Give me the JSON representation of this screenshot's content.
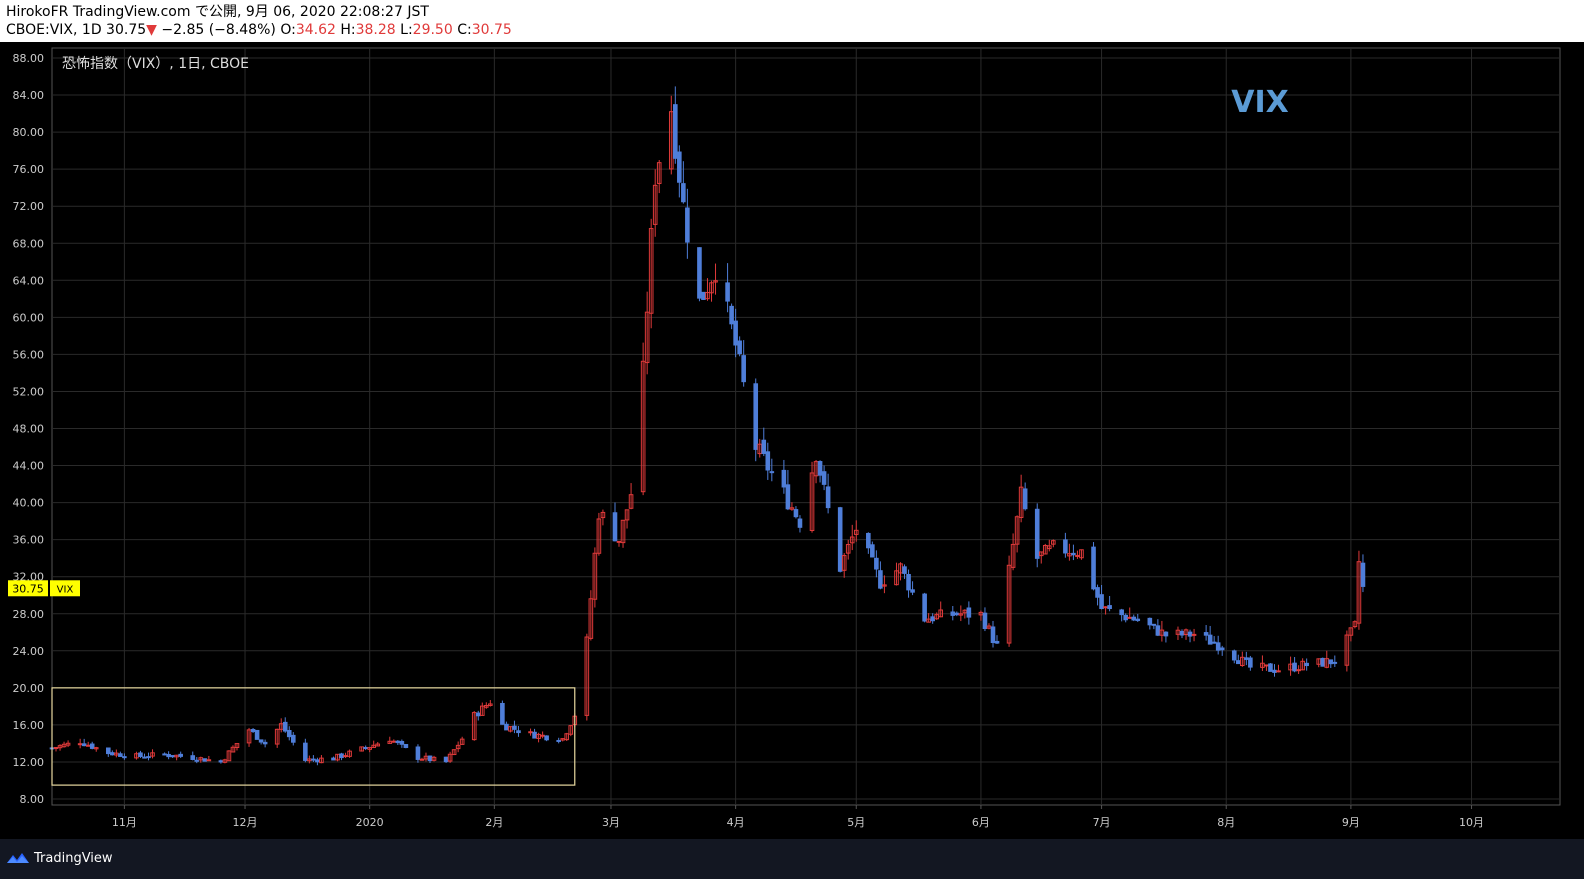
{
  "header": {
    "publish_line": "HirokoFR TradingView.com で公開, 9月 06, 2020 22:08:27 JST",
    "symbol_info": "CBOE:VIX, 1D 30.75",
    "down_arrow": "▼",
    "change": " −2.85 (−8.48%) ",
    "o_label": "O:",
    "o_value": "34.62",
    "h_label": " H:",
    "h_value": "38.28",
    "l_label": " L:",
    "l_value": "29.50",
    "c_label": " C:",
    "c_value": "30.75"
  },
  "footer": {
    "brand": "TradingView",
    "logo_icon": "tradingview-logo-icon"
  },
  "colors": {
    "up": "#e03a3a",
    "down": "#4f7ed9",
    "grid": "#2a2a2a",
    "axis": "#555",
    "watermark": "#5b9bd5",
    "highlight_box": "#e8d9a0",
    "price_tag": "#ffff00"
  },
  "chart_data": {
    "type": "candlestick",
    "title": "恐怖指数（VIX）, 1日, CBOE",
    "watermark": "VIX",
    "ylim": [
      8,
      88
    ],
    "y_ticks": [
      "8.00",
      "12.00",
      "16.00",
      "20.00",
      "24.00",
      "28.00",
      "32.00",
      "36.00",
      "40.00",
      "44.00",
      "48.00",
      "52.00",
      "56.00",
      "60.00",
      "64.00",
      "68.00",
      "72.00",
      "76.00",
      "80.00",
      "84.00",
      "88.00"
    ],
    "x_ticks": [
      {
        "label": "11月",
        "date": "2019-11-01"
      },
      {
        "label": "12月",
        "date": "2019-12-01"
      },
      {
        "label": "2020",
        "date": "2020-01-01"
      },
      {
        "label": "2月",
        "date": "2020-02-01"
      },
      {
        "label": "3月",
        "date": "2020-03-01"
      },
      {
        "label": "4月",
        "date": "2020-04-01"
      },
      {
        "label": "5月",
        "date": "2020-05-01"
      },
      {
        "label": "6月",
        "date": "2020-06-01"
      },
      {
        "label": "7月",
        "date": "2020-07-01"
      },
      {
        "label": "8月",
        "date": "2020-08-01"
      },
      {
        "label": "9月",
        "date": "2020-09-01"
      },
      {
        "label": "10月",
        "date": "2020-10-01"
      }
    ],
    "last_price": "30.75",
    "last_price_label": "VIX",
    "highlight_range": {
      "from": "2019-10-14",
      "to": "2020-02-21",
      "low": 9.5,
      "high": 20
    },
    "anchors": [
      [
        "2019-10-14",
        13.5
      ],
      [
        "2019-10-21",
        14.2
      ],
      [
        "2019-10-28",
        13.0
      ],
      [
        "2019-11-04",
        12.6
      ],
      [
        "2019-11-11",
        12.8
      ],
      [
        "2019-11-18",
        12.5
      ],
      [
        "2019-11-25",
        12.0
      ],
      [
        "2019-12-02",
        15.5
      ],
      [
        "2019-12-06",
        14.0
      ],
      [
        "2019-12-10",
        16.0
      ],
      [
        "2019-12-16",
        12.2
      ],
      [
        "2019-12-23",
        12.4
      ],
      [
        "2019-12-31",
        13.5
      ],
      [
        "2020-01-06",
        14.5
      ],
      [
        "2020-01-13",
        12.5
      ],
      [
        "2020-01-20",
        12.0
      ],
      [
        "2020-01-24",
        14.5
      ],
      [
        "2020-01-27",
        17.0
      ],
      [
        "2020-01-31",
        18.5
      ],
      [
        "2020-02-03",
        16.0
      ],
      [
        "2020-02-10",
        15.0
      ],
      [
        "2020-02-18",
        14.5
      ],
      [
        "2020-02-21",
        17.1
      ],
      [
        "2020-02-24",
        25.0
      ],
      [
        "2020-02-27",
        39.0
      ],
      [
        "2020-03-03",
        36.0
      ],
      [
        "2020-03-06",
        41.0
      ],
      [
        "2020-03-09",
        54.0
      ],
      [
        "2020-03-12",
        75.5
      ],
      [
        "2020-03-16",
        82.7
      ],
      [
        "2020-03-19",
        72.0
      ],
      [
        "2020-03-23",
        61.6
      ],
      [
        "2020-03-27",
        65.5
      ],
      [
        "2020-04-01",
        57.0
      ],
      [
        "2020-04-06",
        46.0
      ],
      [
        "2020-04-13",
        41.0
      ],
      [
        "2020-04-17",
        38.0
      ],
      [
        "2020-04-21",
        45.4
      ],
      [
        "2020-04-27",
        33.0
      ],
      [
        "2020-05-01",
        37.2
      ],
      [
        "2020-05-07",
        31.4
      ],
      [
        "2020-05-12",
        33.0
      ],
      [
        "2020-05-18",
        27.5
      ],
      [
        "2020-05-26",
        28.0
      ],
      [
        "2020-06-01",
        27.9
      ],
      [
        "2020-06-05",
        24.5
      ],
      [
        "2020-06-11",
        40.8
      ],
      [
        "2020-06-15",
        34.0
      ],
      [
        "2020-06-19",
        35.1
      ],
      [
        "2020-06-26",
        34.7
      ],
      [
        "2020-07-01",
        28.6
      ],
      [
        "2020-07-10",
        27.3
      ],
      [
        "2020-07-17",
        25.7
      ],
      [
        "2020-07-24",
        25.8
      ],
      [
        "2020-07-31",
        24.5
      ],
      [
        "2020-08-07",
        22.2
      ],
      [
        "2020-08-14",
        22.0
      ],
      [
        "2020-08-21",
        22.5
      ],
      [
        "2020-08-28",
        22.9
      ],
      [
        "2020-09-02",
        26.6
      ],
      [
        "2020-09-03",
        33.6
      ],
      [
        "2020-09-04",
        30.75
      ]
    ]
  }
}
